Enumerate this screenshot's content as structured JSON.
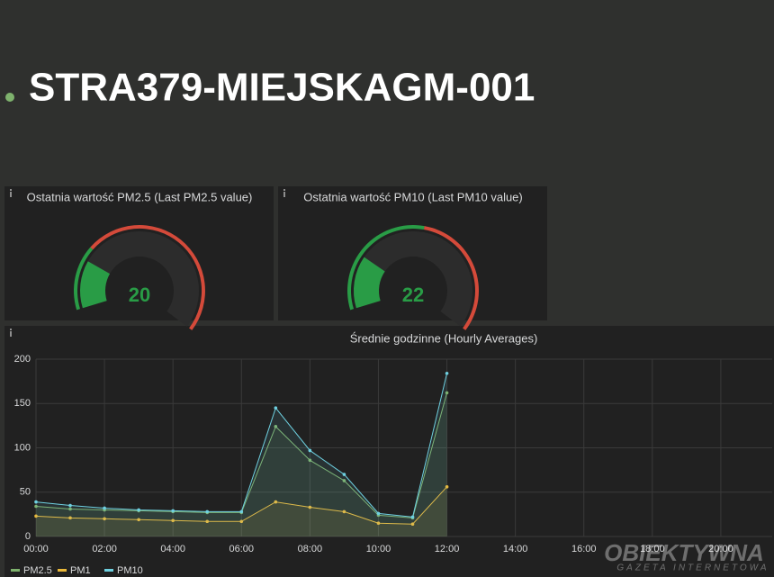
{
  "header": {
    "title": "STRA379-MIEJSKAGM-001"
  },
  "chart_data": [
    {
      "type": "gauge",
      "title": "Ostatnia wartość PM2.5 (Last PM2.5 value)",
      "value": 20,
      "range": [
        0,
        100
      ],
      "thresholds": [
        {
          "value": 0,
          "color": "#299c46"
        },
        {
          "value": 25,
          "color": "#d44a3a"
        }
      ],
      "color": "#299c46"
    },
    {
      "type": "gauge",
      "title": "Ostatnia wartość PM10 (Last PM10 value)",
      "value": 22,
      "range": [
        0,
        100
      ],
      "thresholds": [
        {
          "value": 0,
          "color": "#299c46"
        },
        {
          "value": 50,
          "color": "#d44a3a"
        }
      ],
      "color": "#299c46"
    },
    {
      "type": "line",
      "title": "Średnie godzinne (Hourly Averages)",
      "x": [
        0,
        1,
        2,
        3,
        4,
        5,
        6,
        7,
        8,
        9,
        10,
        11,
        12
      ],
      "series": [
        {
          "name": "PM2.5",
          "color": "#7eb26d",
          "values": [
            34,
            31,
            30,
            29,
            28,
            27,
            27,
            124,
            86,
            63,
            24,
            21,
            162
          ]
        },
        {
          "name": "PM1",
          "color": "#eab839",
          "values": [
            23,
            21,
            20,
            19,
            18,
            17,
            17,
            39,
            33,
            28,
            15,
            14,
            56
          ]
        },
        {
          "name": "PM10",
          "color": "#6ed0e0",
          "values": [
            39,
            35,
            32,
            30,
            29,
            28,
            28,
            145,
            97,
            70,
            26,
            22,
            184
          ]
        }
      ],
      "xlim": [
        0,
        21.5
      ],
      "xticks": [
        {
          "value": 0,
          "label": "00:00"
        },
        {
          "value": 2,
          "label": "02:00"
        },
        {
          "value": 4,
          "label": "04:00"
        },
        {
          "value": 6,
          "label": "06:00"
        },
        {
          "value": 8,
          "label": "08:00"
        },
        {
          "value": 10,
          "label": "10:00"
        },
        {
          "value": 12,
          "label": "12:00"
        },
        {
          "value": 14,
          "label": "14:00"
        },
        {
          "value": 16,
          "label": "16:00"
        },
        {
          "value": 18,
          "label": "18:00"
        },
        {
          "value": 20,
          "label": "20:00"
        }
      ],
      "ylim": [
        0,
        200
      ],
      "yticks": [
        0,
        50,
        100,
        150,
        200
      ],
      "grid": true,
      "legend": "bottom-left"
    }
  ],
  "watermark": {
    "title": "OBIEKTYWNA",
    "subtitle": "GAZETA INTERNETOWA"
  }
}
